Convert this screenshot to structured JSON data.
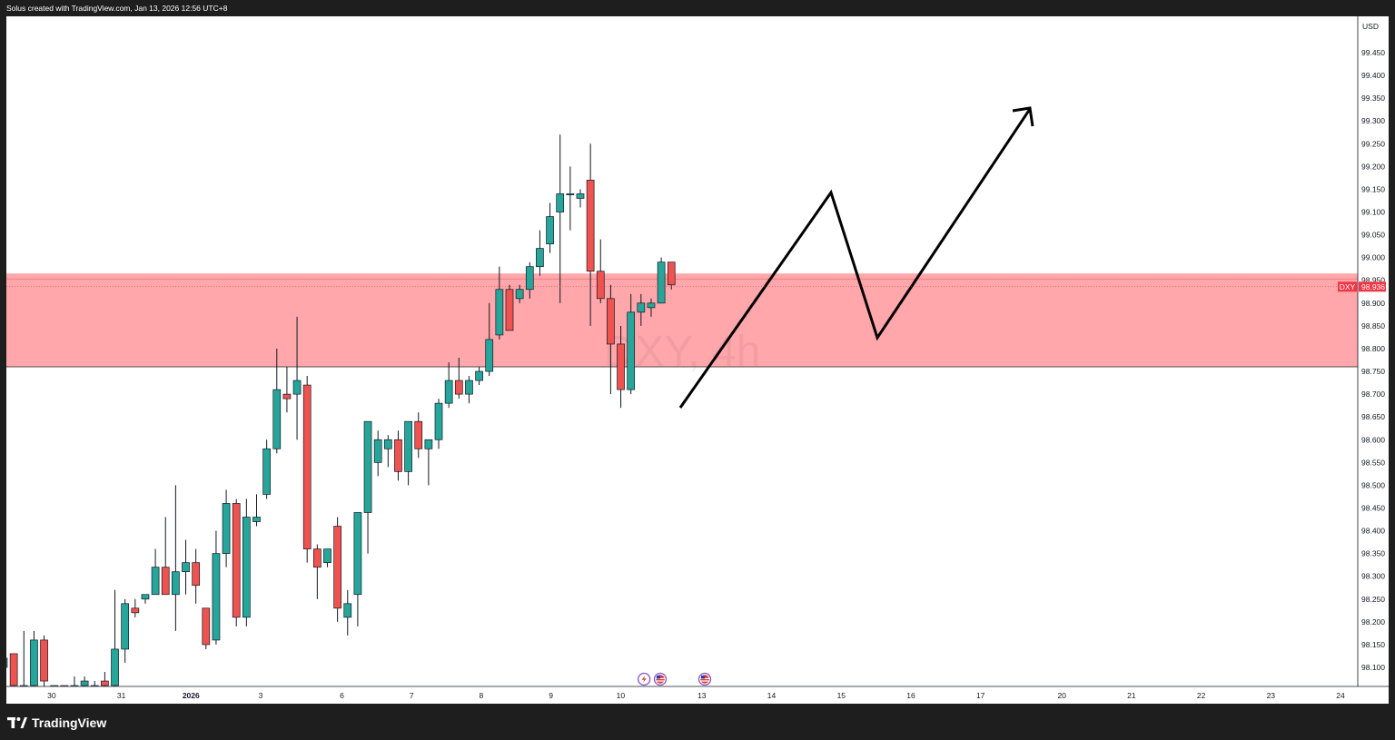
{
  "header": {
    "caption": "Solus created with TradingView.com, Jan 13, 2026 12:56 UTC+8"
  },
  "footer": {
    "brand": "TradingView"
  },
  "colors": {
    "up": "#26a69a",
    "down": "#ef5350",
    "zone_fill": "#ff8a8e",
    "zone_border": "#d0d0d0",
    "price_tag": "#f23645"
  },
  "chart_data": {
    "type": "candlestick",
    "title": "",
    "symbol_watermark": "DXY, 4h",
    "symbol": "DXY",
    "currency": "USD",
    "last_price": "98.936",
    "y_ticks": [
      "99.450",
      "99.400",
      "99.350",
      "99.300",
      "99.250",
      "99.200",
      "99.150",
      "99.100",
      "99.050",
      "99.000",
      "98.950",
      "98.900",
      "98.850",
      "98.800",
      "98.750",
      "98.700",
      "98.650",
      "98.600",
      "98.550",
      "98.500",
      "98.450",
      "98.400",
      "98.350",
      "98.300",
      "98.250",
      "98.200",
      "98.150",
      "98.100"
    ],
    "x_ticks": [
      {
        "label": "30",
        "x": 49.9
      },
      {
        "label": "31",
        "x": 126.6
      },
      {
        "label": "2026",
        "x": 203.3,
        "bold": true
      },
      {
        "label": "3",
        "x": 280.0
      },
      {
        "label": "6",
        "x": 369.5
      },
      {
        "label": "7",
        "x": 446.2
      },
      {
        "label": "8",
        "x": 522.9
      },
      {
        "label": "9",
        "x": 599.6
      },
      {
        "label": "10",
        "x": 676.4
      },
      {
        "label": "13",
        "x": 765.8
      },
      {
        "label": "14",
        "x": 842.5
      },
      {
        "label": "15",
        "x": 919.3
      },
      {
        "label": "16",
        "x": 996.0
      },
      {
        "label": "17",
        "x": 1072.7
      },
      {
        "label": "20",
        "x": 1162.2
      },
      {
        "label": "21",
        "x": 1238.9
      },
      {
        "label": "22",
        "x": 1315.6
      },
      {
        "label": "23",
        "x": 1392.3
      },
      {
        "label": "24",
        "x": 1469.0
      }
    ],
    "resistance_zone": {
      "top": 98.965,
      "bottom": 98.76
    },
    "candles": [
      {
        "o": 98.1,
        "h": 98.12,
        "l": 98.06,
        "c": 98.12
      },
      {
        "o": 98.13,
        "h": 98.13,
        "l": 98.05,
        "c": 98.06
      },
      {
        "o": 98.06,
        "h": 98.18,
        "l": 98.04,
        "c": 98.06
      },
      {
        "o": 98.06,
        "h": 98.18,
        "l": 98.05,
        "c": 98.16
      },
      {
        "o": 98.16,
        "h": 98.17,
        "l": 98.05,
        "c": 98.07
      },
      {
        "o": 98.06,
        "h": 98.06,
        "l": 98.04,
        "c": 98.06
      },
      {
        "o": 98.06,
        "h": 98.06,
        "l": 98.04,
        "c": 98.05
      },
      {
        "o": 98.06,
        "h": 98.08,
        "l": 98.05,
        "c": 98.06
      },
      {
        "o": 98.06,
        "h": 98.08,
        "l": 98.05,
        "c": 98.07
      },
      {
        "o": 98.06,
        "h": 98.07,
        "l": 98.05,
        "c": 98.06
      },
      {
        "o": 98.07,
        "h": 98.09,
        "l": 98.05,
        "c": 98.06
      },
      {
        "o": 98.06,
        "h": 98.27,
        "l": 98.05,
        "c": 98.14
      },
      {
        "o": 98.14,
        "h": 98.25,
        "l": 98.11,
        "c": 98.24
      },
      {
        "o": 98.23,
        "h": 98.25,
        "l": 98.21,
        "c": 98.22
      },
      {
        "o": 98.25,
        "h": 98.26,
        "l": 98.24,
        "c": 98.26
      },
      {
        "o": 98.26,
        "h": 98.36,
        "l": 98.26,
        "c": 98.32
      },
      {
        "o": 98.32,
        "h": 98.43,
        "l": 98.26,
        "c": 98.26
      },
      {
        "o": 98.26,
        "h": 98.5,
        "l": 98.18,
        "c": 98.31
      },
      {
        "o": 98.31,
        "h": 98.38,
        "l": 98.26,
        "c": 98.33
      },
      {
        "o": 98.33,
        "h": 98.36,
        "l": 98.24,
        "c": 98.28
      },
      {
        "o": 98.23,
        "h": 98.23,
        "l": 98.14,
        "c": 98.15
      },
      {
        "o": 98.16,
        "h": 98.4,
        "l": 98.15,
        "c": 98.35
      },
      {
        "o": 98.35,
        "h": 98.49,
        "l": 98.32,
        "c": 98.46
      },
      {
        "o": 98.46,
        "h": 98.47,
        "l": 98.19,
        "c": 98.21
      },
      {
        "o": 98.21,
        "h": 98.47,
        "l": 98.19,
        "c": 98.43
      },
      {
        "o": 98.42,
        "h": 98.48,
        "l": 98.41,
        "c": 98.43
      },
      {
        "o": 98.48,
        "h": 98.6,
        "l": 98.47,
        "c": 98.58
      },
      {
        "o": 98.58,
        "h": 98.8,
        "l": 98.57,
        "c": 98.71
      },
      {
        "o": 98.7,
        "h": 98.76,
        "l": 98.66,
        "c": 98.69
      },
      {
        "o": 98.7,
        "h": 98.87,
        "l": 98.6,
        "c": 98.73
      },
      {
        "o": 98.72,
        "h": 98.74,
        "l": 98.33,
        "c": 98.36
      },
      {
        "o": 98.36,
        "h": 98.37,
        "l": 98.25,
        "c": 98.32
      },
      {
        "o": 98.33,
        "h": 98.36,
        "l": 98.32,
        "c": 98.36
      },
      {
        "o": 98.41,
        "h": 98.43,
        "l": 98.2,
        "c": 98.23
      },
      {
        "o": 98.21,
        "h": 98.27,
        "l": 98.17,
        "c": 98.24
      },
      {
        "o": 98.26,
        "h": 98.44,
        "l": 98.19,
        "c": 98.44
      },
      {
        "o": 98.44,
        "h": 98.63,
        "l": 98.35,
        "c": 98.64
      },
      {
        "o": 98.55,
        "h": 98.62,
        "l": 98.52,
        "c": 98.6
      },
      {
        "o": 98.58,
        "h": 98.61,
        "l": 98.54,
        "c": 98.6
      },
      {
        "o": 98.6,
        "h": 98.62,
        "l": 98.51,
        "c": 98.53
      },
      {
        "o": 98.53,
        "h": 98.64,
        "l": 98.5,
        "c": 98.64
      },
      {
        "o": 98.64,
        "h": 98.66,
        "l": 98.56,
        "c": 98.58
      },
      {
        "o": 98.58,
        "h": 98.6,
        "l": 98.5,
        "c": 98.6
      },
      {
        "o": 98.6,
        "h": 98.69,
        "l": 98.58,
        "c": 98.68
      },
      {
        "o": 98.68,
        "h": 98.77,
        "l": 98.67,
        "c": 98.73
      },
      {
        "o": 98.73,
        "h": 98.78,
        "l": 98.69,
        "c": 98.7
      },
      {
        "o": 98.7,
        "h": 98.74,
        "l": 98.68,
        "c": 98.73
      },
      {
        "o": 98.73,
        "h": 98.76,
        "l": 98.72,
        "c": 98.75
      },
      {
        "o": 98.75,
        "h": 98.9,
        "l": 98.74,
        "c": 98.82
      },
      {
        "o": 98.83,
        "h": 98.98,
        "l": 98.82,
        "c": 98.93
      },
      {
        "o": 98.93,
        "h": 98.94,
        "l": 98.84,
        "c": 98.84
      },
      {
        "o": 98.91,
        "h": 98.94,
        "l": 98.9,
        "c": 98.93
      },
      {
        "o": 98.93,
        "h": 98.99,
        "l": 98.91,
        "c": 98.98
      },
      {
        "o": 98.98,
        "h": 99.06,
        "l": 98.96,
        "c": 99.02
      },
      {
        "o": 99.03,
        "h": 99.12,
        "l": 99.01,
        "c": 99.09
      },
      {
        "o": 99.1,
        "h": 99.27,
        "l": 98.9,
        "c": 99.14
      },
      {
        "o": 99.14,
        "h": 99.2,
        "l": 99.06,
        "c": 99.14
      },
      {
        "o": 99.13,
        "h": 99.15,
        "l": 99.11,
        "c": 99.14
      },
      {
        "o": 99.17,
        "h": 99.25,
        "l": 98.85,
        "c": 98.97
      },
      {
        "o": 98.97,
        "h": 99.04,
        "l": 98.9,
        "c": 98.91
      },
      {
        "o": 98.91,
        "h": 98.94,
        "l": 98.7,
        "c": 98.81
      },
      {
        "o": 98.81,
        "h": 98.85,
        "l": 98.67,
        "c": 98.71
      },
      {
        "o": 98.71,
        "h": 98.92,
        "l": 98.7,
        "c": 98.88
      },
      {
        "o": 98.88,
        "h": 98.92,
        "l": 98.85,
        "c": 98.9
      },
      {
        "o": 98.89,
        "h": 98.91,
        "l": 98.87,
        "c": 98.9
      },
      {
        "o": 98.9,
        "h": 99.0,
        "l": 98.9,
        "c": 98.99
      },
      {
        "o": 98.99,
        "h": 98.99,
        "l": 98.93,
        "c": 98.94
      }
    ],
    "drawn_arrow": [
      {
        "x": "Jan 12 ~20:00",
        "y": 98.67
      },
      {
        "x": "Jan 14 ~20:00",
        "y": 99.15
      },
      {
        "x": "Jan 15 ~12:00",
        "y": 98.82
      },
      {
        "x": "Jan 19 ~04:00",
        "y": 99.32
      }
    ],
    "event_markers": [
      {
        "name": "lightning-event-icon",
        "x_index": 63.3
      },
      {
        "name": "us-flag-icon",
        "x_index": 64.9
      },
      {
        "name": "us-flag-icon",
        "x_index": 69.3
      }
    ]
  }
}
